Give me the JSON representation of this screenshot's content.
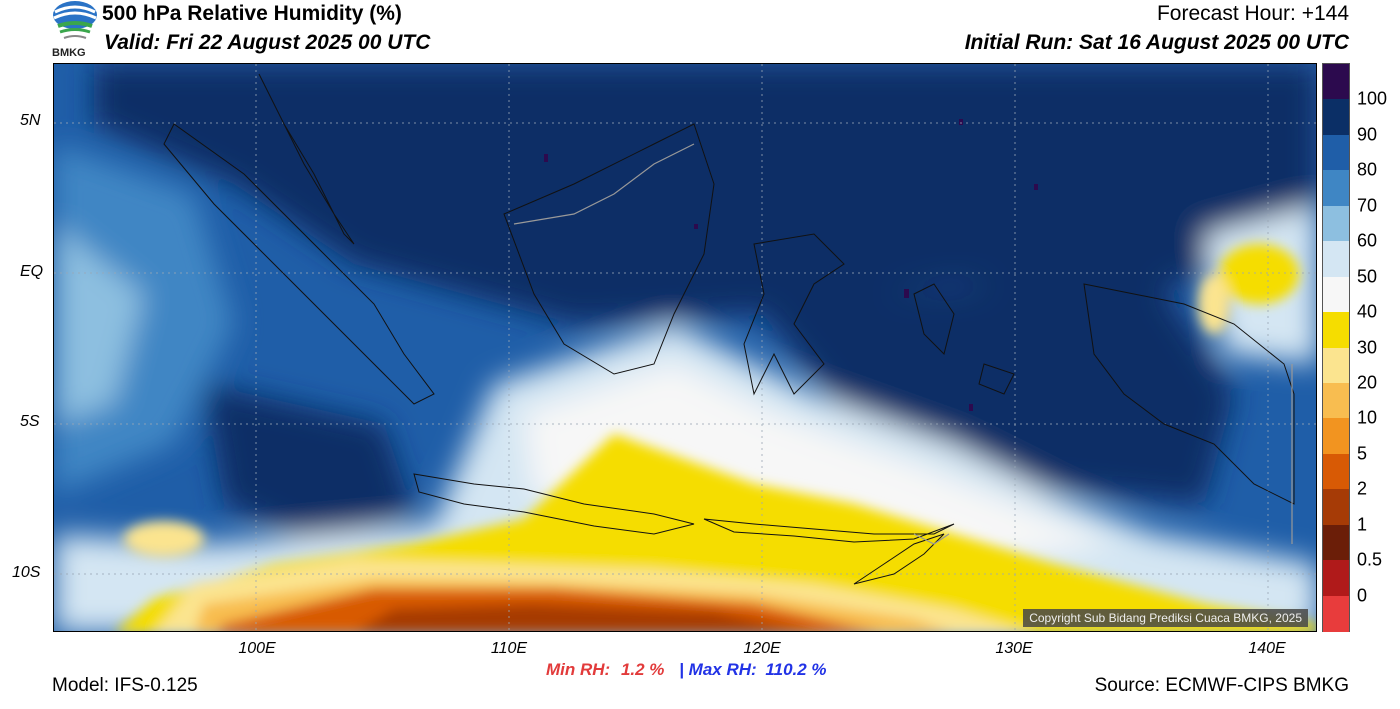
{
  "header": {
    "title": "500 hPa Relative Humidity (%)",
    "valid": "Valid: Fri 22 August 2025 00 UTC",
    "forecast_hour": "Forecast Hour: +144",
    "initial_run": "Initial Run: Sat 16 August 2025 00 UTC",
    "logo_text": "BMKG"
  },
  "map": {
    "lat_labels": [
      "5N",
      "EQ",
      "5S",
      "10S"
    ],
    "lon_labels": [
      "100E",
      "110E",
      "120E",
      "130E",
      "140E"
    ],
    "copyright": "Copyright Sub Bidang Prediksi Cuaca BMKG, 2025",
    "lat_range": [
      -12,
      7
    ],
    "lon_range": [
      92,
      142
    ]
  },
  "colorbar": {
    "labels": [
      "100",
      "90",
      "80",
      "70",
      "60",
      "50",
      "40",
      "30",
      "20",
      "10",
      "5",
      "2",
      "1",
      "0.5",
      "0"
    ],
    "colors": [
      "#2c0a4e",
      "#0b2f66",
      "#1f5ea8",
      "#3f86c4",
      "#8dbfe0",
      "#d4e6f3",
      "#f7f7f7",
      "#f5dd00",
      "#fbe48f",
      "#f8bd50",
      "#f29420",
      "#d85a05",
      "#a63b06",
      "#6b1e08",
      "#b01a1a",
      "#e83c3c"
    ]
  },
  "footer": {
    "min_rh_label": "Min RH:",
    "min_rh_value": "1.2 %",
    "separator": "|",
    "max_rh_label": "Max RH:",
    "max_rh_value": "110.2 %",
    "model": "Model: IFS-0.125",
    "source": "Source: ECMWF-CIPS BMKG"
  }
}
